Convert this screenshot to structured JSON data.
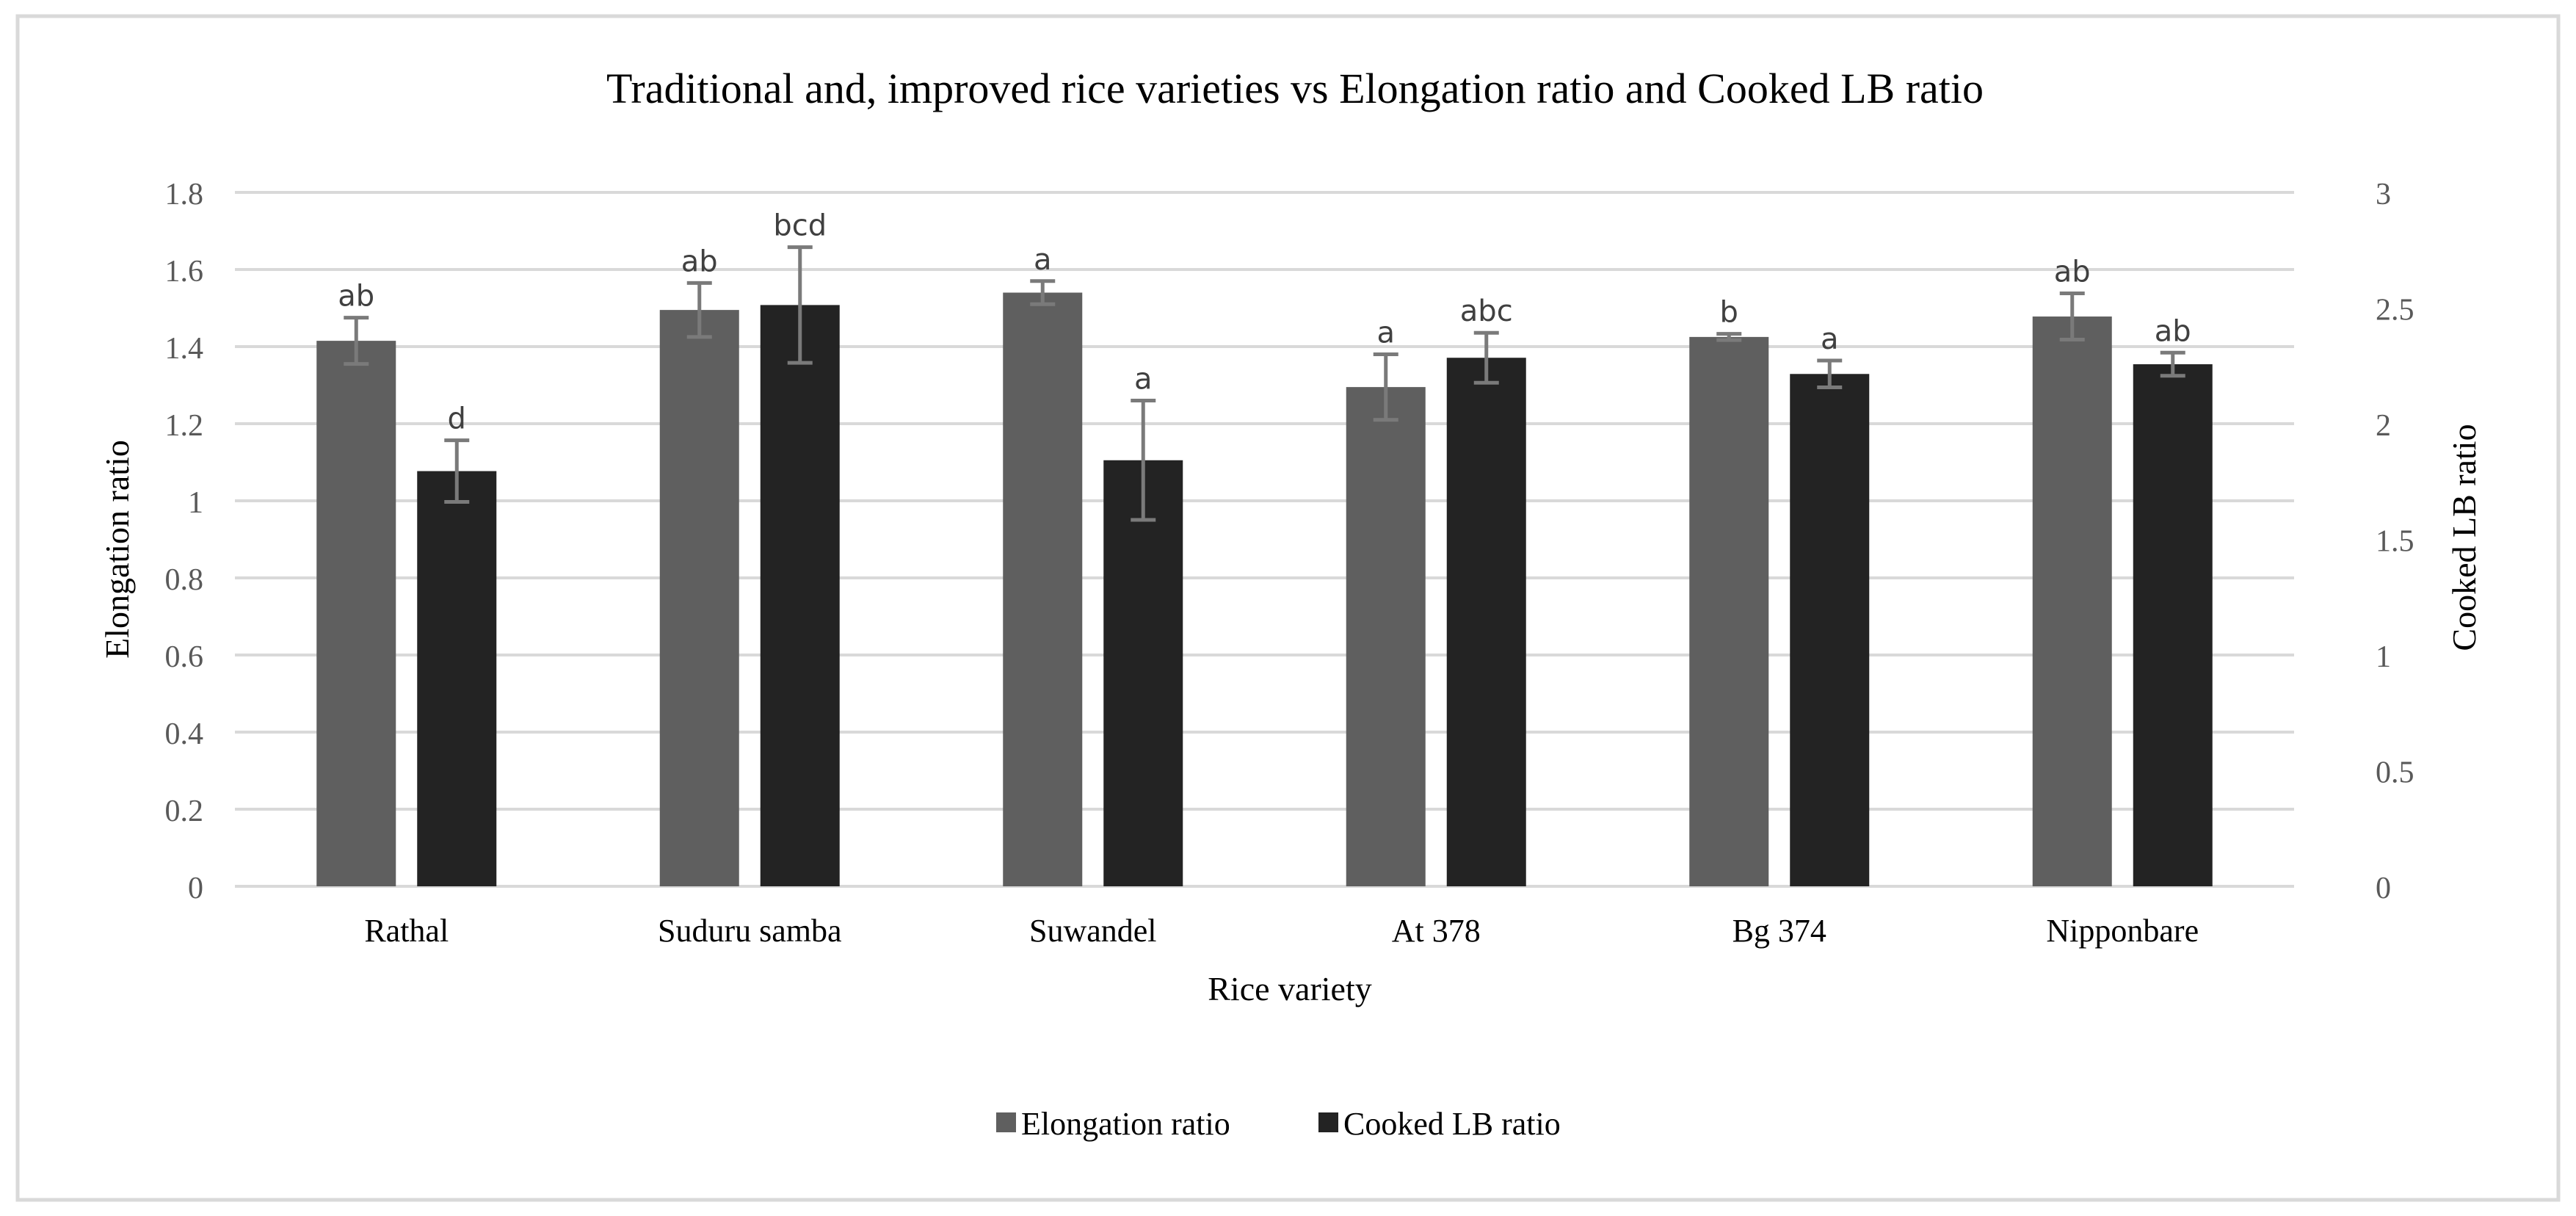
{
  "chart_data": {
    "type": "bar",
    "title": "Traditional and, improved rice varieties vs Elongation ratio and Cooked LB ratio",
    "xlabel": "Rice variety",
    "ylabel": "Elongation ratio",
    "y2label": "Cooked LB ratio",
    "ylim": [
      0,
      1.8
    ],
    "y2lim": [
      0,
      3
    ],
    "yticks": [
      "0",
      "0.2",
      "0.4",
      "0.6",
      "0.8",
      "1",
      "1.2",
      "1.4",
      "1.6",
      "1.8"
    ],
    "y2ticks": [
      "0",
      "0.5",
      "1",
      "1.5",
      "2",
      "2.5",
      "3"
    ],
    "categories": [
      "Rathal",
      "Suduru samba",
      "Suwandel",
      "At 378",
      "Bg 374",
      "Nipponbare"
    ],
    "grid": true,
    "legend_position": "bottom",
    "series": [
      {
        "name": "Elongation ratio",
        "axis": "left",
        "color": "#5f5f5f",
        "values": [
          1.415,
          1.495,
          1.54,
          1.295,
          1.425,
          1.478
        ],
        "errors": [
          0.06,
          0.07,
          0.03,
          0.085,
          0.008,
          0.06
        ],
        "letters": [
          "ab",
          "ab",
          "a",
          "a",
          "b",
          "ab"
        ]
      },
      {
        "name": "Cooked LB ratio",
        "axis": "right",
        "color": "#232323",
        "values": [
          1.795,
          2.513,
          1.842,
          2.285,
          2.215,
          2.257
        ],
        "errors": [
          0.133,
          0.25,
          0.258,
          0.108,
          0.058,
          0.05
        ],
        "letters": [
          "d",
          "bcd",
          "a",
          "abc",
          "a",
          "ab"
        ]
      }
    ]
  }
}
